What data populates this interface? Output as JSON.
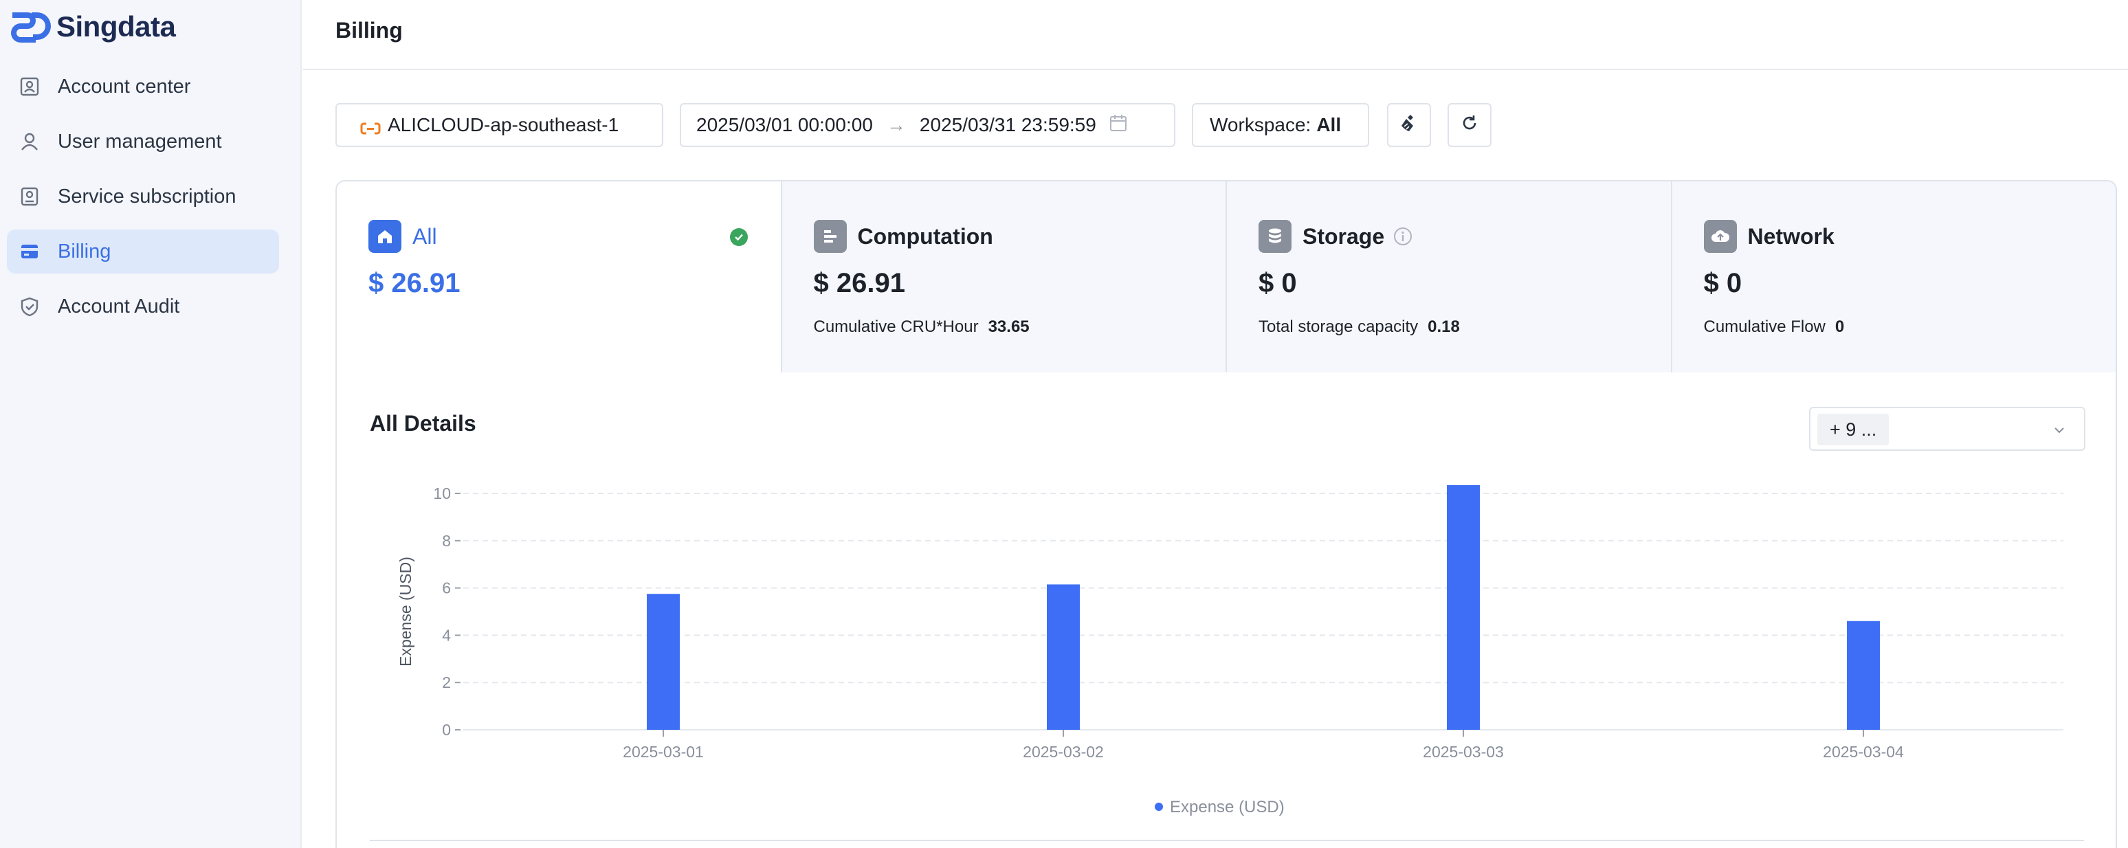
{
  "brand": {
    "name": "Singdata"
  },
  "sidebar": {
    "items": [
      {
        "label": "Account center",
        "icon": "account-card-icon",
        "active": false
      },
      {
        "label": "User management",
        "icon": "user-icon",
        "active": false
      },
      {
        "label": "Service subscription",
        "icon": "subscription-icon",
        "active": false
      },
      {
        "label": "Billing",
        "icon": "billing-icon",
        "active": true
      },
      {
        "label": "Account Audit",
        "icon": "shield-icon",
        "active": false
      }
    ]
  },
  "header": {
    "title": "Billing"
  },
  "toolbar": {
    "region": "ALICLOUD-ap-southeast-1",
    "date_start": "2025/03/01 00:00:00",
    "date_sep": "→",
    "date_end": "2025/03/31 23:59:59",
    "workspace_label": "Workspace:",
    "workspace_value": "All"
  },
  "cards": [
    {
      "title": "All",
      "amount": "$ 26.91",
      "metric_label": "",
      "metric_value": "",
      "selected": true
    },
    {
      "title": "Computation",
      "amount": "$ 26.91",
      "metric_label": "Cumulative CRU*Hour",
      "metric_value": "33.65"
    },
    {
      "title": "Storage",
      "amount": "$ 0",
      "metric_label": "Total storage capacity",
      "metric_value": "0.18"
    },
    {
      "title": "Network",
      "amount": "$ 0",
      "metric_label": "Cumulative Flow",
      "metric_value": "0"
    }
  ],
  "details": {
    "title": "All Details",
    "selector_tag": "+ 9 ..."
  },
  "colors": {
    "accent": "#3a6fe6",
    "bar": "#3d6ef5",
    "success": "#3aa55d"
  },
  "chart_data": {
    "type": "bar",
    "categories": [
      "2025-03-01",
      "2025-03-02",
      "2025-03-03",
      "2025-03-04"
    ],
    "series": [
      {
        "name": "Expense (USD)",
        "values": [
          5.75,
          6.15,
          10.35,
          4.6
        ]
      }
    ],
    "xlabel": "",
    "ylabel": "Expense (USD)",
    "ylim": [
      0,
      10
    ],
    "yticks": [
      0,
      2,
      4,
      6,
      8,
      10
    ],
    "grid": true,
    "legend": "bottom-center"
  }
}
